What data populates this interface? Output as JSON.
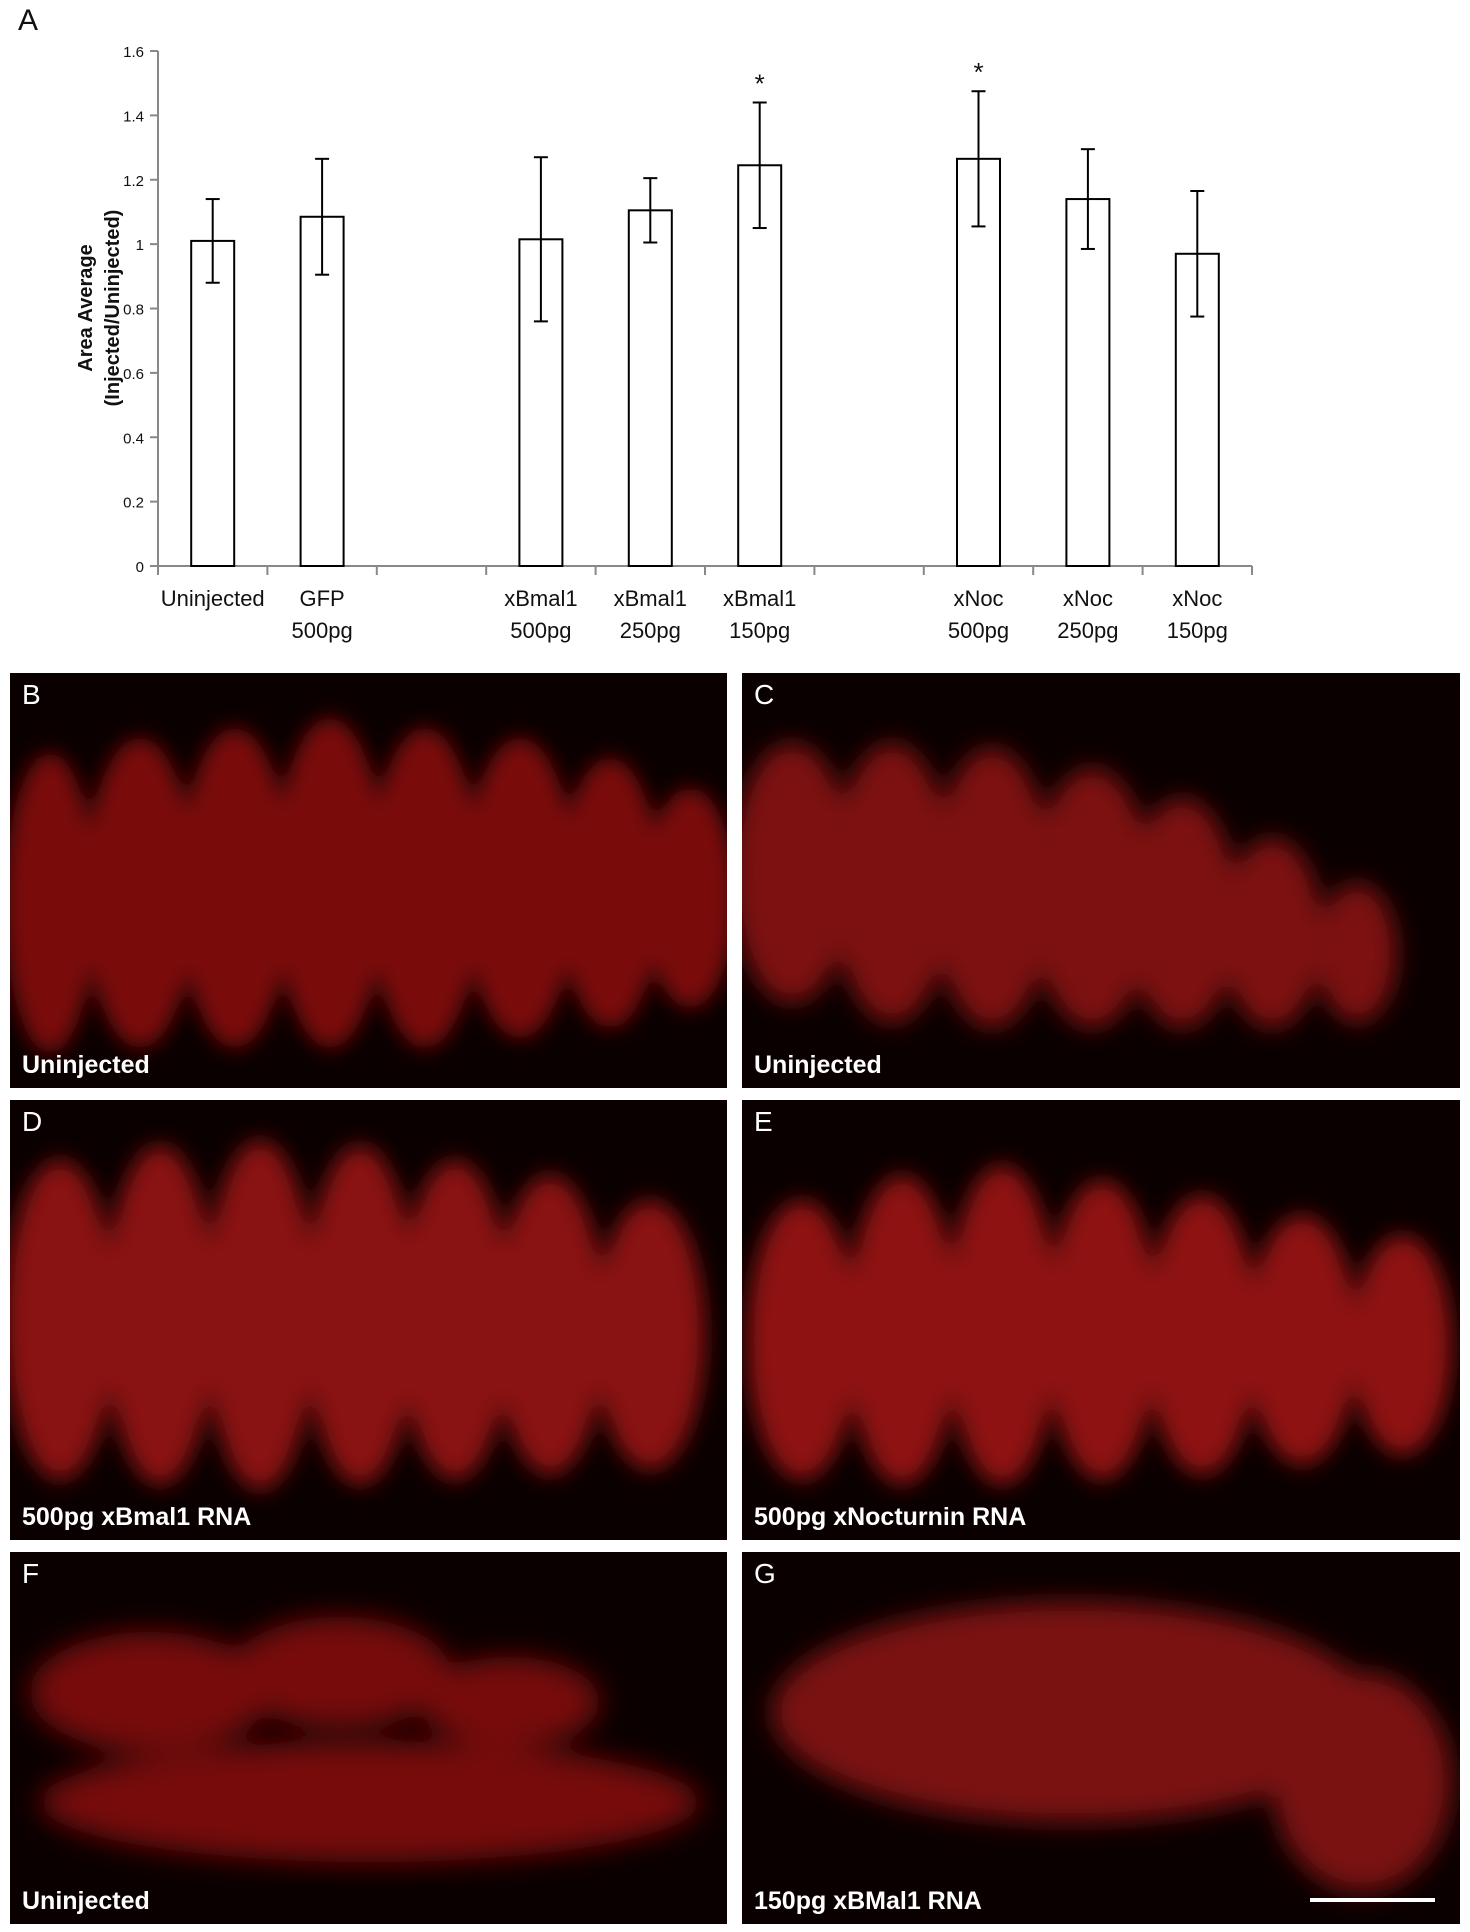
{
  "figure": {
    "panel_a_letter": "A"
  },
  "chart_data": {
    "type": "bar",
    "title": "",
    "xlabel": "",
    "ylabel": [
      "Area Average",
      "(Injected/Uninjected)"
    ],
    "ylim": [
      0,
      1.6
    ],
    "yticks": [
      "0",
      "0.2",
      "0.4",
      "0.6",
      "0.8",
      "1",
      "1.2",
      "1.4",
      "1.6"
    ],
    "categories": [
      [
        "Uninjected"
      ],
      [
        "GFP",
        "500pg"
      ],
      [],
      [
        "xBmal1",
        "500pg"
      ],
      [
        "xBmal1",
        "250pg"
      ],
      [
        "xBmal1",
        "150pg"
      ],
      [],
      [
        "xNoc",
        "500pg"
      ],
      [
        "xNoc",
        "250pg"
      ],
      [
        "xNoc",
        "150pg"
      ]
    ],
    "values": [
      1.01,
      1.085,
      null,
      1.015,
      1.105,
      1.245,
      null,
      1.265,
      1.14,
      0.97
    ],
    "error": [
      0.13,
      0.18,
      null,
      0.255,
      0.1,
      0.195,
      null,
      0.21,
      0.155,
      0.195
    ],
    "significance": [
      "",
      "",
      "",
      "",
      "",
      "*",
      "",
      "*",
      "",
      ""
    ],
    "grid": false,
    "bar_color": "#ffffff",
    "bar_edge_color": "#000000"
  },
  "panels": [
    {
      "letter": "B",
      "caption": "Uninjected"
    },
    {
      "letter": "C",
      "caption": "Uninjected"
    },
    {
      "letter": "D",
      "caption": "500pg xBmal1 RNA"
    },
    {
      "letter": "E",
      "caption": "500pg xNocturnin RNA"
    },
    {
      "letter": "F",
      "caption": "Uninjected"
    },
    {
      "letter": "G",
      "caption": "150pg xBMal1 RNA"
    }
  ],
  "colors": {
    "fluorescence": "#c01010",
    "background": "#0b0000"
  }
}
